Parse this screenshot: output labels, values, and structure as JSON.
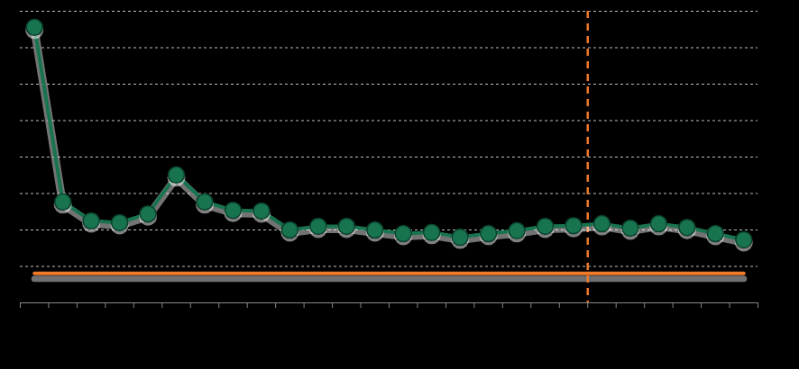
{
  "chart_data": {
    "type": "line",
    "x": [
      0,
      1,
      2,
      3,
      4,
      5,
      6,
      7,
      8,
      9,
      10,
      11,
      12,
      13,
      14,
      15,
      16,
      17,
      18,
      19,
      20,
      21,
      22,
      23,
      24,
      25
    ],
    "values": [
      7.56,
      2.77,
      2.25,
      2.2,
      2.44,
      3.51,
      2.77,
      2.54,
      2.52,
      2.0,
      2.1,
      2.1,
      2.0,
      1.9,
      1.93,
      1.8,
      1.9,
      1.98,
      2.1,
      2.12,
      2.17,
      2.05,
      2.17,
      2.07,
      1.9,
      1.73
    ],
    "color": "#17744f",
    "marker": "circle",
    "xlim": [
      -0.5,
      25.5
    ],
    "xticks": [
      -0.5,
      0.5,
      1.5,
      2.5,
      3.5,
      4.5,
      5.5,
      6.5,
      7.5,
      8.5,
      9.5,
      10.5,
      11.5,
      12.5,
      13.5,
      14.5,
      15.5,
      16.5,
      17.5,
      18.5,
      19.5,
      20.5,
      21.5,
      22.5,
      23.5,
      24.5,
      25.5
    ],
    "ylim": [
      0,
      8
    ],
    "yticks": [
      0,
      1,
      2,
      3,
      4,
      5,
      6,
      7,
      8
    ],
    "grid": true,
    "tick_labels": false,
    "reference_line": {
      "value": 0.81,
      "color": "#f07a2a"
    },
    "vertical_marker": {
      "x": 19.5,
      "color": "#f07a2a",
      "line_style": "dashed"
    }
  }
}
